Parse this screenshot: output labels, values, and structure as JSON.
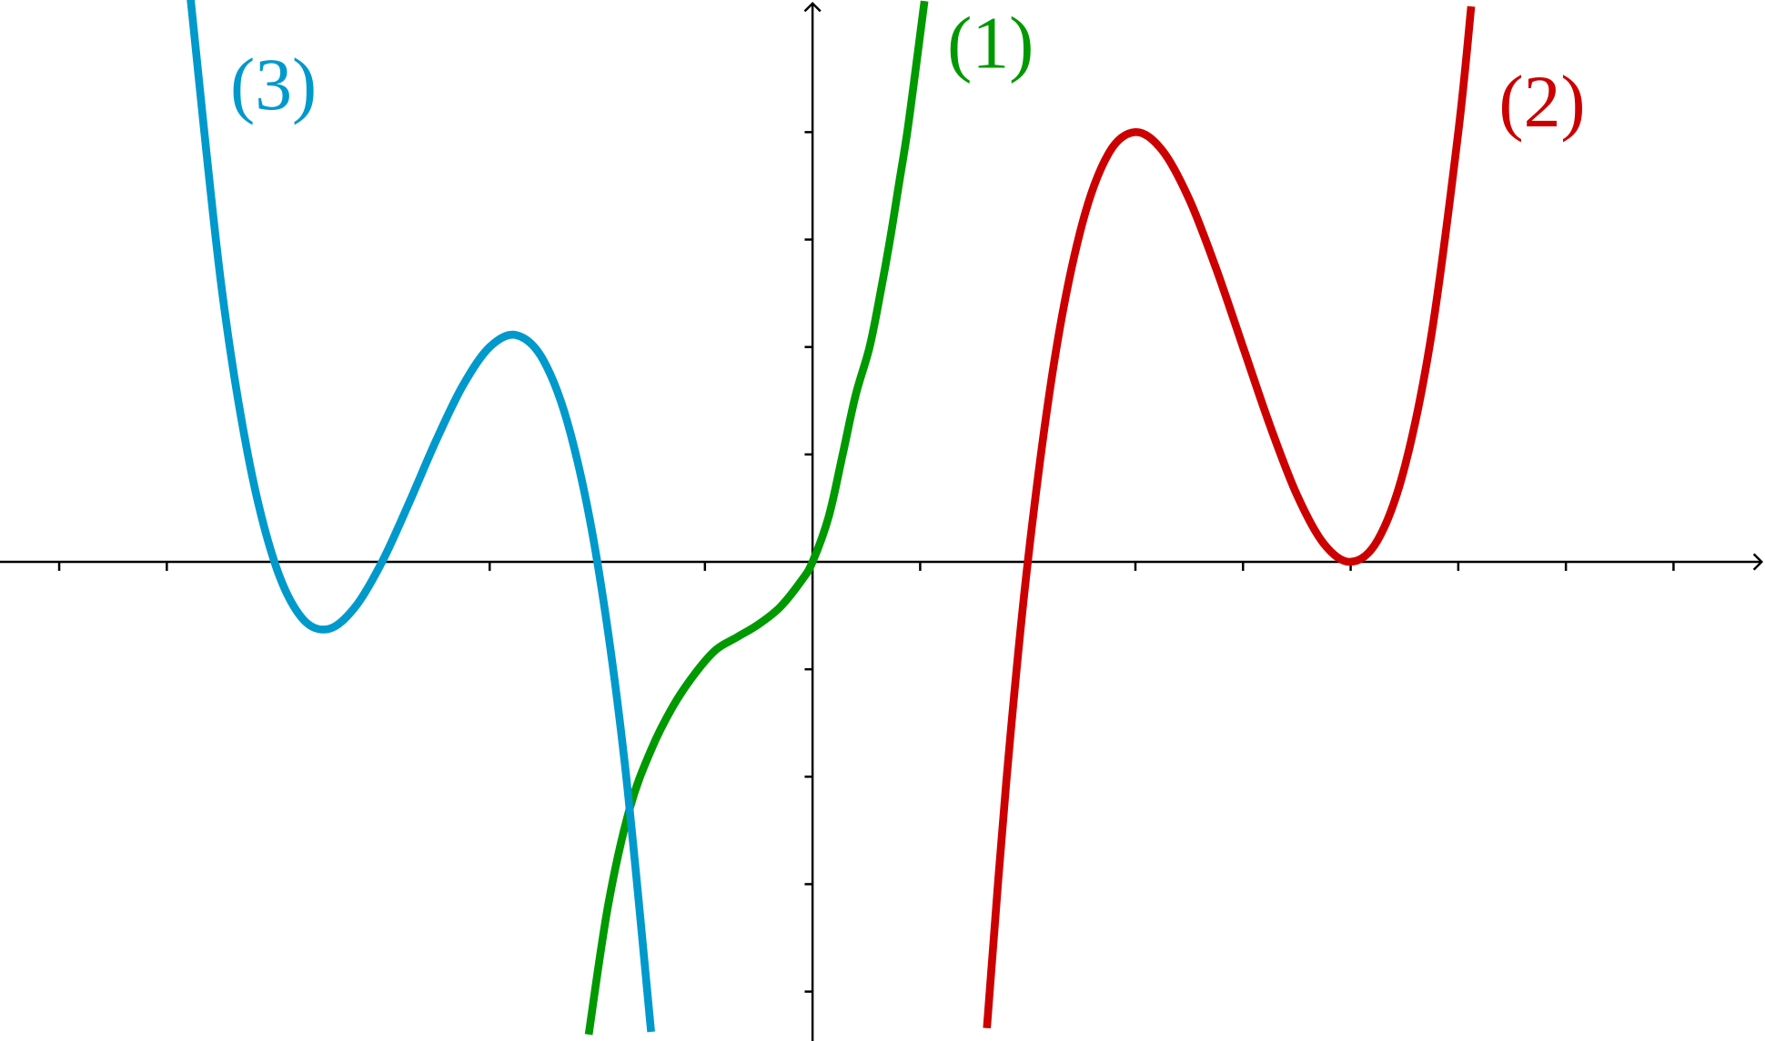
{
  "chart_data": {
    "type": "line",
    "xlim": [
      -7.55,
      8.85
    ],
    "ylim": [
      -4.46,
      5.23
    ],
    "xticks": [
      -7,
      -6,
      -3,
      -1,
      1,
      3,
      4,
      5,
      6,
      7,
      8
    ],
    "yticks": [
      -4,
      -3,
      -2,
      -1,
      1,
      2,
      3,
      4
    ],
    "series": [
      {
        "name": "(1)",
        "color": "#009900",
        "x": [
          -2.08,
          -1.9,
          -1.7,
          -1.5,
          -1.3,
          -1.1,
          -0.9,
          -0.7,
          -0.5,
          -0.3,
          -0.1,
          0,
          0.15,
          0.28,
          0.4,
          0.53,
          0.63,
          0.72,
          0.8,
          0.88,
          0.96,
          1.04
        ],
        "values": [
          -4.4,
          -3.2,
          -2.3,
          -1.75,
          -1.35,
          -1.05,
          -0.82,
          -0.7,
          -0.58,
          -0.42,
          -0.17,
          0,
          0.42,
          1,
          1.55,
          2,
          2.5,
          3,
          3.5,
          4,
          4.6,
          5.22
        ]
      },
      {
        "name": "(2)",
        "color": "#cc0000",
        "x": [
          1.62,
          1.8,
          2,
          2.25,
          2.5,
          2.75,
          3,
          3.25,
          3.5,
          3.75,
          4,
          4.25,
          4.5,
          4.75,
          5,
          5.25,
          5.5,
          5.75,
          6,
          6.12
        ],
        "values": [
          -4.34,
          -2.05,
          0,
          1.89,
          3.125,
          3.8,
          4,
          3.83,
          3.375,
          2.73,
          2,
          1.27,
          0.625,
          0.17,
          0,
          0.2,
          0.875,
          2.11,
          4,
          5.17
        ]
      },
      {
        "name": "(3)",
        "color": "#0099cc",
        "x": [
          -5.78,
          -5.5,
          -5.25,
          -5,
          -4.75,
          -4.5,
          -4.25,
          -4,
          -3.75,
          -3.5,
          -3.25,
          -3,
          -2.75,
          -2.5,
          -2.25,
          -2,
          -1.75,
          -1.5
        ],
        "values": [
          5.25,
          2.625,
          1.016,
          0,
          -0.516,
          -0.625,
          -0.42,
          0,
          0.547,
          1.125,
          1.64,
          2,
          2.11,
          1.875,
          1.2,
          0,
          -1.83,
          -4.375
        ]
      }
    ]
  }
}
